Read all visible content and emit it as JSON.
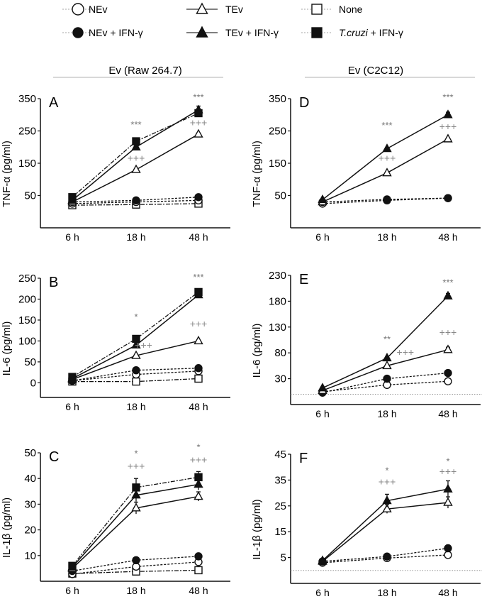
{
  "legend": [
    {
      "key": "nev",
      "label": "NEv"
    },
    {
      "key": "tev",
      "label": "TEv"
    },
    {
      "key": "none",
      "label": "None"
    },
    {
      "key": "nev_ifn",
      "label": "NEv + IFN-γ"
    },
    {
      "key": "tev_ifn",
      "label": "TEv + IFN-γ"
    },
    {
      "key": "tcruzi_ifn",
      "label_italic": "T.cruzi",
      "label": " + IFN-γ"
    }
  ],
  "column_titles": [
    "Ev (Raw 264.7)",
    "Ev (C2C12)"
  ],
  "chart_data": [
    {
      "type": "line",
      "panel": "A",
      "ylabel": "TNF-α (pg/ml)",
      "categories": [
        "6 h",
        "18 h",
        "48 h"
      ],
      "ylim": [
        -50,
        350
      ],
      "yticks": [
        50,
        150,
        250,
        350
      ],
      "series": [
        {
          "key": "none",
          "values": [
            20,
            22,
            25
          ]
        },
        {
          "key": "nev",
          "values": [
            25,
            30,
            35
          ]
        },
        {
          "key": "nev_ifn",
          "values": [
            30,
            35,
            45
          ]
        },
        {
          "key": "tev",
          "values": [
            30,
            130,
            240
          ]
        },
        {
          "key": "tev_ifn",
          "values": [
            35,
            200,
            315
          ],
          "errors": [
            0,
            0,
            12
          ]
        },
        {
          "key": "tcruzi_ifn",
          "values": [
            45,
            218,
            305
          ]
        }
      ],
      "annotations": [
        {
          "x": 1,
          "y": 260,
          "text": "***",
          "color": "#777"
        },
        {
          "x": 1,
          "y": 155,
          "text": "+++",
          "color": "#888"
        },
        {
          "x": 2,
          "y": 345,
          "text": "***",
          "color": "#777"
        },
        {
          "x": 2,
          "y": 265,
          "text": "+++",
          "color": "#888"
        }
      ]
    },
    {
      "type": "line",
      "panel": "B",
      "ylabel": "IL-6 (pg/ml)",
      "categories": [
        "6 h",
        "18 h",
        "48 h"
      ],
      "ylim": [
        -35,
        250
      ],
      "yticks": [
        0,
        50,
        100,
        150,
        200,
        250
      ],
      "series": [
        {
          "key": "none",
          "values": [
            3,
            3,
            10
          ]
        },
        {
          "key": "nev",
          "values": [
            5,
            20,
            28
          ]
        },
        {
          "key": "nev_ifn",
          "values": [
            5,
            30,
            35
          ]
        },
        {
          "key": "tev",
          "values": [
            8,
            65,
            100
          ]
        },
        {
          "key": "tev_ifn",
          "values": [
            10,
            90,
            210
          ]
        },
        {
          "key": "tcruzi_ifn",
          "values": [
            14,
            105,
            217
          ],
          "errors": [
            0,
            0,
            6
          ]
        }
      ],
      "annotations": [
        {
          "x": 1,
          "y": 150,
          "text": "*",
          "color": "#777"
        },
        {
          "x": 1.12,
          "y": 82,
          "text": "+++",
          "color": "#888"
        },
        {
          "x": 2,
          "y": 245,
          "text": "***",
          "color": "#777"
        },
        {
          "x": 2,
          "y": 133,
          "text": "+++",
          "color": "#888"
        }
      ]
    },
    {
      "type": "line",
      "panel": "C",
      "ylabel": "IL-1β  (pg/ml)",
      "categories": [
        "6 h",
        "18 h",
        "48 h"
      ],
      "ylim": [
        0,
        50
      ],
      "yticks": [
        10,
        20,
        30,
        40,
        50
      ],
      "series": [
        {
          "key": "none",
          "values": [
            3,
            3.8,
            4.3
          ]
        },
        {
          "key": "nev",
          "values": [
            2.8,
            5.7,
            7.5
          ]
        },
        {
          "key": "nev_ifn",
          "values": [
            4,
            8.2,
            9.7
          ],
          "errors": [
            0,
            1,
            0.8
          ]
        },
        {
          "key": "tev",
          "values": [
            5,
            28.5,
            33
          ],
          "errors": [
            0,
            2.3,
            1.8
          ]
        },
        {
          "key": "tev_ifn",
          "values": [
            5.5,
            33.5,
            37.7
          ],
          "errors": [
            0,
            2.5,
            2.2
          ]
        },
        {
          "key": "tcruzi_ifn",
          "values": [
            6,
            36.5,
            40.5
          ],
          "errors": [
            0,
            3.5,
            2.2
          ]
        }
      ],
      "annotations": [
        {
          "x": 1,
          "y": 48.5,
          "text": "*",
          "color": "#777"
        },
        {
          "x": 1,
          "y": 43.5,
          "text": "+++",
          "color": "#888"
        },
        {
          "x": 2,
          "y": 51,
          "text": "*",
          "color": "#777"
        },
        {
          "x": 2,
          "y": 46,
          "text": "+++",
          "color": "#888"
        }
      ]
    },
    {
      "type": "line",
      "panel": "D",
      "ylabel": "TNF-α (pg/ml)",
      "categories": [
        "6 h",
        "18 h",
        "48 h"
      ],
      "ylim": [
        -50,
        350
      ],
      "yticks": [
        50,
        150,
        250,
        350
      ],
      "series": [
        {
          "key": "nev",
          "values": [
            25,
            35,
            42
          ]
        },
        {
          "key": "nev_ifn",
          "values": [
            30,
            38,
            42
          ]
        },
        {
          "key": "tev",
          "values": [
            30,
            120,
            225
          ]
        },
        {
          "key": "tev_ifn",
          "values": [
            37,
            195,
            300
          ],
          "errors": [
            0,
            0,
            8
          ]
        }
      ],
      "annotations": [
        {
          "x": 1,
          "y": 258,
          "text": "***",
          "color": "#777"
        },
        {
          "x": 1,
          "y": 155,
          "text": "+++",
          "color": "#888"
        },
        {
          "x": 2,
          "y": 345,
          "text": "***",
          "color": "#777"
        },
        {
          "x": 2,
          "y": 253,
          "text": "+++",
          "color": "#888"
        }
      ]
    },
    {
      "type": "line",
      "panel": "E",
      "ylabel": "IL-6 (pg/ml)",
      "categories": [
        "6 h",
        "18 h",
        "48 h"
      ],
      "ylim": [
        -20,
        230
      ],
      "yticks": [
        30,
        80,
        130,
        180,
        230
      ],
      "reference_line": 0,
      "series": [
        {
          "key": "nev",
          "values": [
            5,
            18,
            25
          ]
        },
        {
          "key": "nev_ifn",
          "values": [
            3,
            30,
            41
          ]
        },
        {
          "key": "tev",
          "values": [
            7,
            55,
            86
          ],
          "errors": [
            0,
            0,
            5
          ]
        },
        {
          "key": "tev_ifn",
          "values": [
            12,
            70,
            190
          ],
          "errors": [
            0,
            0,
            5
          ]
        }
      ],
      "annotations": [
        {
          "x": 1,
          "y": 100,
          "text": "**",
          "color": "#777"
        },
        {
          "x": 1.3,
          "y": 75,
          "text": "+++",
          "color": "#888"
        },
        {
          "x": 2,
          "y": 210,
          "text": "***",
          "color": "#777"
        },
        {
          "x": 2,
          "y": 113,
          "text": "+++",
          "color": "#888"
        }
      ]
    },
    {
      "type": "line",
      "panel": "F",
      "ylabel": "IL-1β (pg/ml)",
      "categories": [
        "6 h",
        "18 h",
        "48 h"
      ],
      "ylim": [
        -5,
        45
      ],
      "yticks": [
        5,
        15,
        25,
        35,
        45
      ],
      "reference_line": 0,
      "series": [
        {
          "key": "nev",
          "values": [
            3,
            4.8,
            6
          ]
        },
        {
          "key": "nev_ifn",
          "values": [
            3.5,
            5.4,
            8.6
          ],
          "errors": [
            0,
            0,
            0.6
          ]
        },
        {
          "key": "tev",
          "values": [
            3.5,
            23.8,
            26.3
          ],
          "errors": [
            0,
            1.7,
            2.2
          ]
        },
        {
          "key": "tev_ifn",
          "values": [
            3.8,
            27,
            31.5
          ],
          "errors": [
            0,
            2.5,
            3.2
          ]
        }
      ],
      "annotations": [
        {
          "x": 1,
          "y": 37.5,
          "text": "*",
          "color": "#777"
        },
        {
          "x": 1,
          "y": 33,
          "text": "+++",
          "color": "#888"
        },
        {
          "x": 2,
          "y": 41,
          "text": "*",
          "color": "#777"
        },
        {
          "x": 2,
          "y": 37,
          "text": "+++",
          "color": "#888"
        }
      ]
    }
  ]
}
